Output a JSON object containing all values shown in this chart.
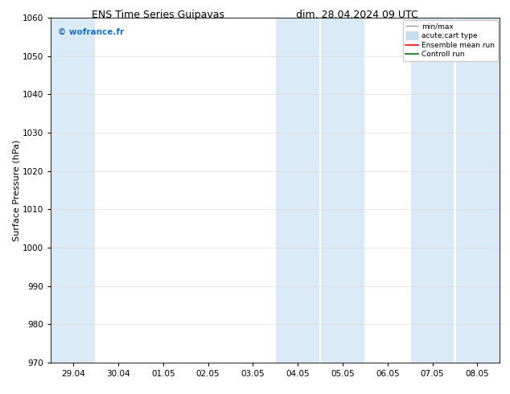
{
  "title_left": "ENS Time Series Guipavas",
  "title_right": "dim. 28.04.2024 09 UTC",
  "ylabel": "Surface Pressure (hPa)",
  "ylim": [
    970,
    1060
  ],
  "yticks": [
    970,
    980,
    990,
    1000,
    1010,
    1020,
    1030,
    1040,
    1050,
    1060
  ],
  "xtick_labels": [
    "29.04",
    "30.04",
    "01.05",
    "02.05",
    "03.05",
    "04.05",
    "05.05",
    "06.05",
    "07.05",
    "08.05"
  ],
  "shade_color": "#daeaf7",
  "bg_color": "#ffffff",
  "watermark": "© wofrance.fr",
  "watermark_color": "#1a6fcc",
  "legend_labels": [
    "min/max",
    "acute;cart type",
    "Ensemble mean run",
    "Controll run"
  ],
  "legend_line_colors": [
    "#aaaaaa",
    "#c8dced",
    "#ff0000",
    "#007700"
  ],
  "grid_color": "#dddddd",
  "title_fontsize": 9,
  "axis_fontsize": 8,
  "tick_fontsize": 7.5,
  "x_start": "2024-04-28",
  "x_end": "2024-05-09"
}
